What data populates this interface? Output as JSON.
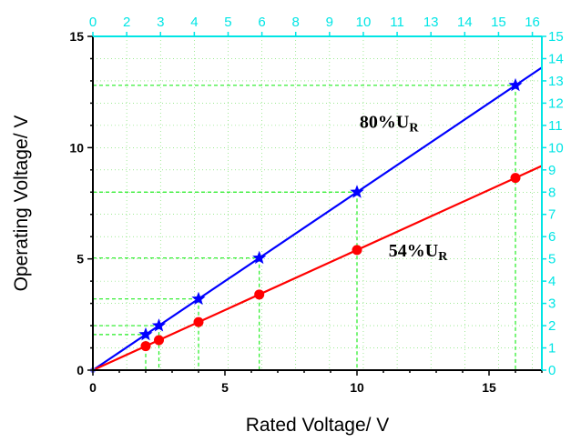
{
  "chart_data": {
    "type": "line",
    "xlabel": "Rated Voltage/ V",
    "ylabel": "Operating Voltage/ V",
    "xlim": [
      0,
      17
    ],
    "ylim": [
      0,
      15
    ],
    "x_ticks": [
      0,
      5,
      10,
      15
    ],
    "y_ticks": [
      0,
      5,
      10,
      15
    ],
    "top_ticks": [
      "0",
      "2",
      "3",
      "4",
      "5",
      "6",
      "8",
      "9",
      "10",
      "11",
      "13",
      "14",
      "15",
      "16"
    ],
    "top_tick_positions": [
      0,
      1.6,
      3.2,
      4.8,
      6.4,
      8.0,
      9.6,
      11.2,
      12.8,
      14.4,
      16.0,
      17.6,
      19.2,
      20.8
    ],
    "top_axis_max": 21.25,
    "right_ticks": [
      "0",
      "1",
      "2",
      "3",
      "4",
      "5",
      "6",
      "7",
      "8",
      "9",
      "10",
      "11",
      "12",
      "13",
      "14",
      "15"
    ],
    "grid": "dotted",
    "series": [
      {
        "marker": "star",
        "color": "#0000ff",
        "x": [
          2,
          2.5,
          4,
          6.3,
          10,
          16
        ],
        "y": [
          1.6,
          2.0,
          3.2,
          5.04,
          8.0,
          12.8
        ],
        "fit_slope": 0.8
      },
      {
        "marker": "circle",
        "color": "#ff0000",
        "x": [
          2,
          2.5,
          4,
          6.3,
          10,
          16
        ],
        "y": [
          1.08,
          1.35,
          2.16,
          3.4,
          5.4,
          8.64
        ],
        "fit_slope": 0.54
      }
    ],
    "annotations": [
      {
        "main": "80%U",
        "sub": "R",
        "x": 10.1,
        "y": 10.9
      },
      {
        "main": "54%U",
        "sub": "R",
        "x": 11.2,
        "y": 5.1
      }
    ]
  }
}
